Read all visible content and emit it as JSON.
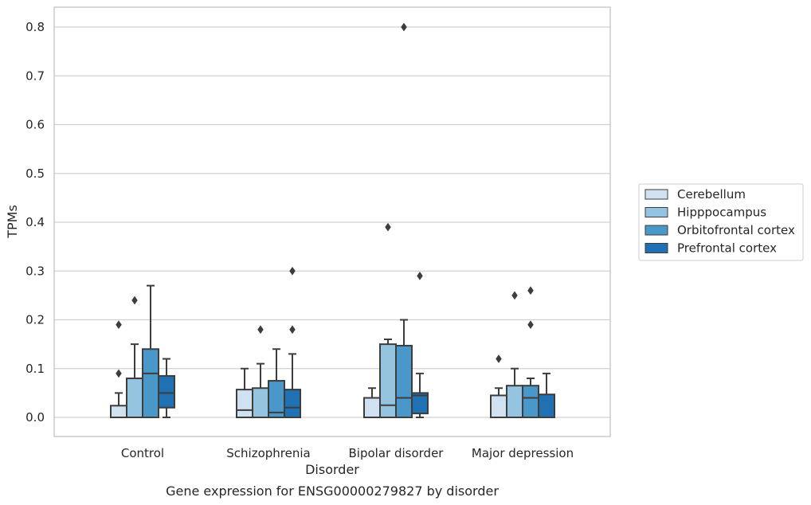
{
  "chart_data": {
    "type": "box",
    "title": "",
    "caption": "Gene expression for ENSG00000279827 by disorder",
    "xlabel": "Disorder",
    "ylabel": "TPMs",
    "ylim": [
      -0.04,
      0.84
    ],
    "yticks": [
      0.0,
      0.1,
      0.2,
      0.3,
      0.4,
      0.5,
      0.6,
      0.7,
      0.8
    ],
    "grid": "horizontal",
    "legend_position": "right",
    "categories": [
      "Control",
      "Schizophrenia",
      "Bipolar disorder",
      "Major depression"
    ],
    "series": [
      {
        "name": "Cerebellum",
        "color": "#d0e1f2",
        "boxes": [
          {
            "q1": 0.0,
            "median": 0.0,
            "q3": 0.024,
            "whisker_low": 0.0,
            "whisker_high": 0.05,
            "outliers": [
              0.09,
              0.19
            ]
          },
          {
            "q1": 0.0,
            "median": 0.015,
            "q3": 0.057,
            "whisker_low": 0.0,
            "whisker_high": 0.1,
            "outliers": []
          },
          {
            "q1": 0.0,
            "median": 0.0,
            "q3": 0.04,
            "whisker_low": 0.0,
            "whisker_high": 0.06,
            "outliers": []
          },
          {
            "q1": 0.0,
            "median": 0.0,
            "q3": 0.045,
            "whisker_low": 0.0,
            "whisker_high": 0.06,
            "outliers": [
              0.12
            ]
          }
        ]
      },
      {
        "name": "Hipppocampus",
        "color": "#94c4df",
        "boxes": [
          {
            "q1": 0.0,
            "median": 0.0,
            "q3": 0.08,
            "whisker_low": 0.0,
            "whisker_high": 0.15,
            "outliers": [
              0.24
            ]
          },
          {
            "q1": 0.0,
            "median": 0.0,
            "q3": 0.06,
            "whisker_low": 0.0,
            "whisker_high": 0.11,
            "outliers": [
              0.18
            ]
          },
          {
            "q1": 0.0,
            "median": 0.025,
            "q3": 0.15,
            "whisker_low": 0.0,
            "whisker_high": 0.16,
            "outliers": [
              0.39
            ]
          },
          {
            "q1": 0.0,
            "median": 0.0,
            "q3": 0.065,
            "whisker_low": 0.0,
            "whisker_high": 0.1,
            "outliers": [
              0.25
            ]
          }
        ]
      },
      {
        "name": "Orbitofrontal cortex",
        "color": "#4a98c9",
        "boxes": [
          {
            "q1": 0.0,
            "median": 0.09,
            "q3": 0.14,
            "whisker_low": 0.0,
            "whisker_high": 0.27,
            "outliers": []
          },
          {
            "q1": 0.0,
            "median": 0.01,
            "q3": 0.075,
            "whisker_low": 0.0,
            "whisker_high": 0.14,
            "outliers": []
          },
          {
            "q1": 0.0,
            "median": 0.04,
            "q3": 0.147,
            "whisker_low": 0.0,
            "whisker_high": 0.2,
            "outliers": [
              0.8
            ]
          },
          {
            "q1": 0.0,
            "median": 0.04,
            "q3": 0.065,
            "whisker_low": 0.0,
            "whisker_high": 0.08,
            "outliers": [
              0.19,
              0.26
            ]
          }
        ]
      },
      {
        "name": "Prefrontal cortex",
        "color": "#2070b4",
        "boxes": [
          {
            "q1": 0.02,
            "median": 0.05,
            "q3": 0.085,
            "whisker_low": 0.0,
            "whisker_high": 0.12,
            "outliers": []
          },
          {
            "q1": 0.0,
            "median": 0.02,
            "q3": 0.057,
            "whisker_low": 0.0,
            "whisker_high": 0.13,
            "outliers": [
              0.18,
              0.3
            ]
          },
          {
            "q1": 0.008,
            "median": 0.045,
            "q3": 0.05,
            "whisker_low": 0.0,
            "whisker_high": 0.09,
            "outliers": [
              0.29
            ]
          },
          {
            "q1": 0.0,
            "median": 0.0,
            "q3": 0.047,
            "whisker_low": 0.0,
            "whisker_high": 0.09,
            "outliers": []
          }
        ]
      }
    ]
  }
}
